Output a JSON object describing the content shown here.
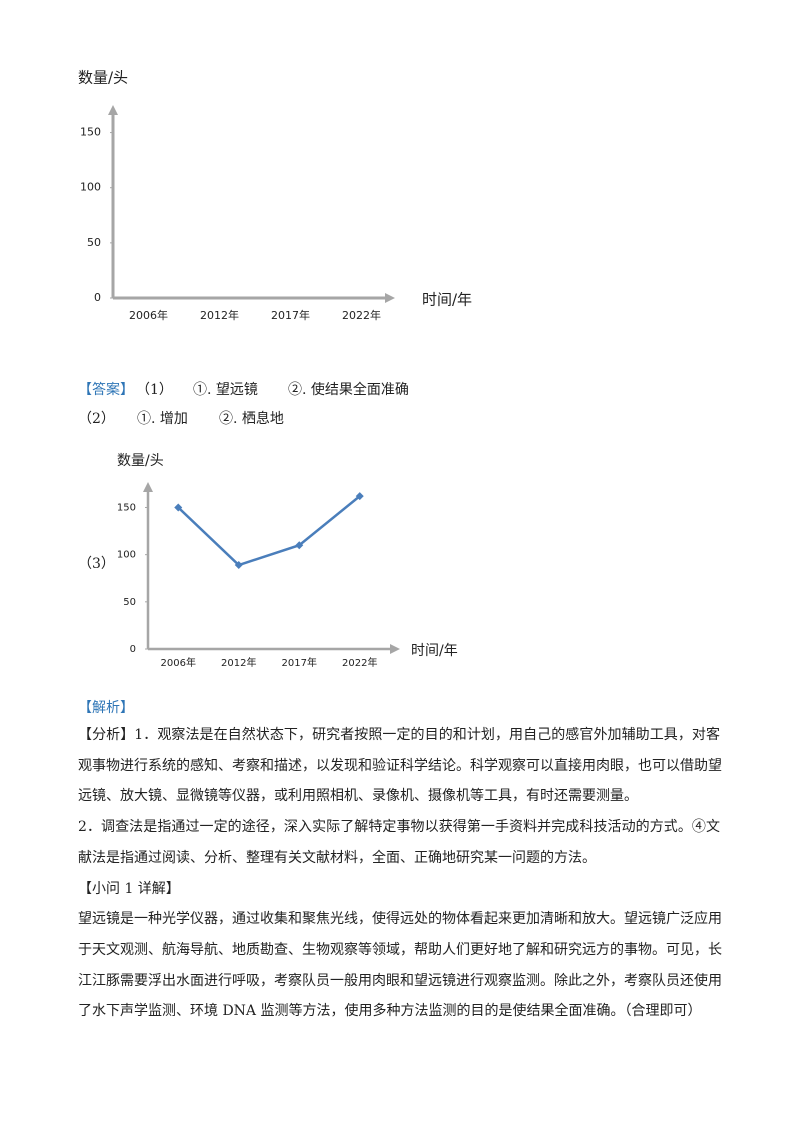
{
  "chart_data": [
    {
      "type": "line",
      "y_label": "数量/头",
      "x_label": "时间/年",
      "categories": [
        "2006年",
        "2012年",
        "2017年",
        "2022年"
      ],
      "series": [],
      "ylim": [
        0,
        175
      ],
      "yticks": [
        0,
        50,
        100,
        150
      ]
    },
    {
      "type": "line",
      "y_label": "数量/头",
      "x_label": "时间/年",
      "categories": [
        "2006年",
        "2012年",
        "2017年",
        "2022年"
      ],
      "series": [
        {
          "color": "#4a7ebb",
          "values": [
            150,
            89,
            110,
            162
          ]
        }
      ],
      "ylim": [
        0,
        177
      ],
      "yticks": [
        0,
        50,
        100,
        150
      ]
    }
  ],
  "answer": {
    "label": "【答案】",
    "q1": {
      "num": "（1）",
      "a1": "①. 望远镜",
      "a2": "②. 使结果全面准确"
    },
    "q2": {
      "num": "（2）",
      "a1": "①. 增加",
      "a2": "②. 栖息地"
    },
    "q3": {
      "num": "（3）"
    }
  },
  "analysis": {
    "label": "【解析】",
    "lines": [
      "【分析】1．观察法是在自然状态下，研究者按照一定的目的和计划，用自己的感官外加辅助工具，对客",
      "观事物进行系统的感知、考察和描述，以发现和验证科学结论。科学观察可以直接用肉眼，也可以借助望",
      "远镜、放大镜、显微镜等仪器，或利用照相机、录像机、摄像机等工具，有时还需要测量。",
      "2．调查法是指通过一定的途径，深入实际了解特定事物以获得第一手资料并完成科技活动的方式。④文",
      "献法是指通过阅读、分析、整理有关文献材料，全面、正确地研究某一问题的方法。",
      "【小问 1 详解】",
      "望远镜是一种光学仪器，通过收集和聚焦光线，使得远处的物体看起来更加清晰和放大。望远镜广泛应用",
      "于天文观测、航海导航、地质勘查、生物观察等领域，帮助人们更好地了解和研究远方的事物。可见，长",
      "江江豚需要浮出水面进行呼吸，考察队员一般用肉眼和望远镜进行观察监测。除此之外，考察队员还使用",
      "了水下声学监测、环境 DNA 监测等方法，使用多种方法监测的目的是使结果全面准确。（合理即可）"
    ]
  }
}
